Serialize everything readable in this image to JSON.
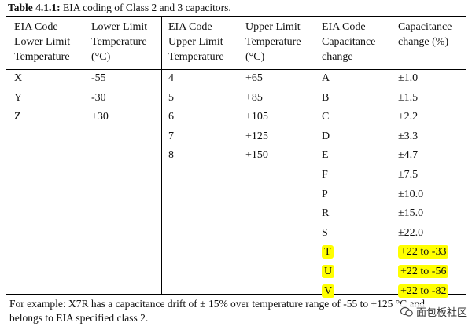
{
  "title_bold": "Table 4.1.1:",
  "title_rest": " EIA coding of Class 2 and 3 capacitors.",
  "headers": [
    [
      "EIA Code",
      "Lower Limit",
      "Temperature"
    ],
    [
      "Lower Limit",
      "Temperature",
      "(°C)"
    ],
    [
      "EIA Code",
      "Upper Limit",
      "Temperature"
    ],
    [
      "Upper Limit",
      "Temperature",
      "(°C)"
    ],
    [
      "EIA Code",
      "Capacitance",
      "change"
    ],
    [
      "Capacitance",
      "change (%)"
    ]
  ],
  "lower": [
    {
      "code": "X",
      "temp": "-55"
    },
    {
      "code": "Y",
      "temp": "-30"
    },
    {
      "code": "Z",
      "temp": "+30"
    }
  ],
  "upper": [
    {
      "code": "4",
      "temp": "+65"
    },
    {
      "code": "5",
      "temp": "+85"
    },
    {
      "code": "6",
      "temp": "+105"
    },
    {
      "code": "7",
      "temp": "+125"
    },
    {
      "code": "8",
      "temp": "+150"
    }
  ],
  "capacitance": [
    {
      "code": "A",
      "change": "±1.0"
    },
    {
      "code": "B",
      "change": "±1.5"
    },
    {
      "code": "C",
      "change": "±2.2"
    },
    {
      "code": "D",
      "change": "±3.3"
    },
    {
      "code": "E",
      "change": "±4.7"
    },
    {
      "code": "F",
      "change": "±7.5"
    },
    {
      "code": "P",
      "change": "±10.0"
    },
    {
      "code": "R",
      "change": "±15.0"
    },
    {
      "code": "S",
      "change": "±22.0"
    },
    {
      "code": "T",
      "change": "+22 to -33",
      "highlight": true
    },
    {
      "code": "U",
      "change": "+22 to -56",
      "highlight": true
    },
    {
      "code": "V",
      "change": "+22 to -82",
      "highlight": true
    }
  ],
  "footer_line1": "For example: X7R has a capacitance drift of ± 15% over temperature range of -55 to +125 °C and",
  "footer_line2": "belongs to EIA specified class 2.",
  "watermark_text": "面包板社区",
  "highlight_color": "#ffff00"
}
